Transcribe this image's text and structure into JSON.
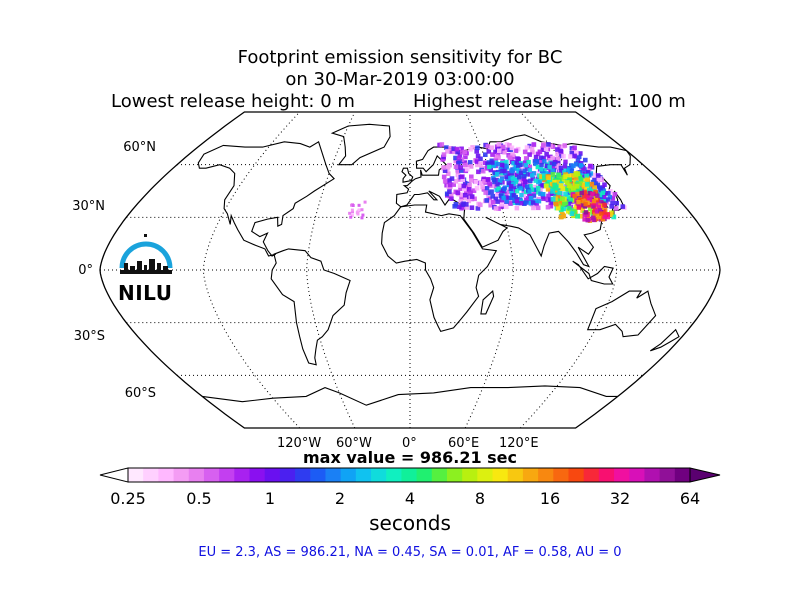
{
  "title": {
    "line1": "Footprint emission sensitivity for BC",
    "line2": "on 30-Mar-2019 03:00:00",
    "lowest": "Lowest release height: 0 m",
    "highest": "Highest release height: 100 m"
  },
  "map": {
    "projection": "robinson",
    "lat_labels": [
      "60°N",
      "30°N",
      "0°",
      "30°S",
      "60°S"
    ],
    "lon_labels": [
      "120°W",
      "60°W",
      "0°",
      "60°E",
      "120°E"
    ],
    "logo_text": "NILU",
    "colors": {
      "accent_logo": "#1aa3dc"
    }
  },
  "max_value": "max value = 986.21 sec",
  "colorbar": {
    "tick_labels": [
      "0.25",
      "0.5",
      "1",
      "2",
      "4",
      "8",
      "16",
      "32",
      "64"
    ],
    "label": "seconds",
    "colors": [
      "#ffe8ff",
      "#ffd0ff",
      "#ffb8ff",
      "#f49cf4",
      "#e880f0",
      "#d760f0",
      "#c33ff0",
      "#a821f0",
      "#8a10f0",
      "#6a10f0",
      "#4b20f0",
      "#2f3cf0",
      "#1c5cf5",
      "#1a80f5",
      "#10a3f5",
      "#10c2f0",
      "#10dcdc",
      "#10f0c0",
      "#10f09a",
      "#20f070",
      "#55f040",
      "#8cf020",
      "#b8f010",
      "#dcf010",
      "#f8e810",
      "#f8c810",
      "#f8a810",
      "#f88810",
      "#f86810",
      "#f84810",
      "#f82838",
      "#f81070",
      "#f010a0",
      "#d810b8",
      "#b010b0",
      "#901098",
      "#700080"
    ]
  },
  "stats": "EU = 2.3,  AS = 986.21,  NA = 0.45,  SA = 0.01,  AF = 0.58,  AU = 0"
}
